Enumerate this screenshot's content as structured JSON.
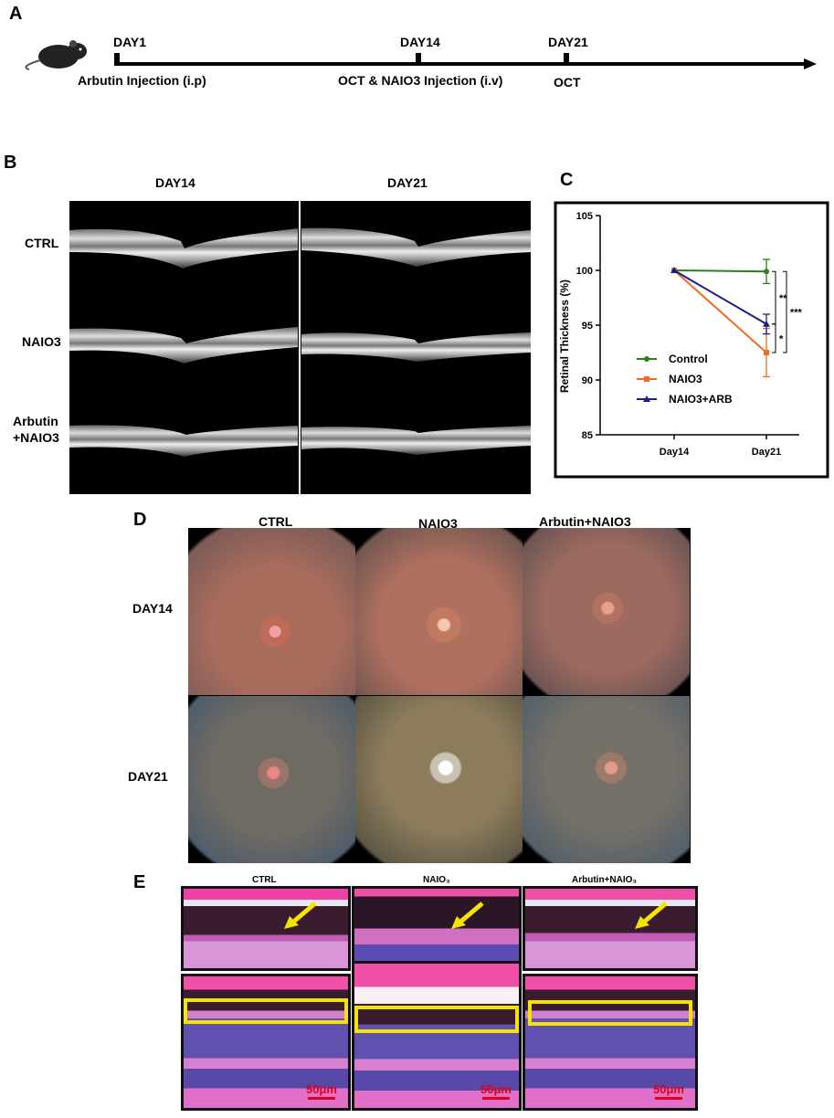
{
  "panels": {
    "a": "A",
    "b": "B",
    "c": "C",
    "d": "D",
    "e": "E"
  },
  "timeline": {
    "events": [
      {
        "day": "DAY1",
        "action": "Arbutin Injection (i.p)"
      },
      {
        "day": "DAY14",
        "action": "OCT & NAIO3 Injection (i.v)"
      },
      {
        "day": "DAY21",
        "action": "OCT"
      }
    ]
  },
  "oct": {
    "columns": [
      "DAY14",
      "DAY21"
    ],
    "rows": [
      "CTRL",
      "NAIO3",
      "Arbutin\n+NAIO3"
    ]
  },
  "fundus": {
    "columns": [
      "CTRL",
      "NAIO3",
      "Arbutin+NAIO3"
    ],
    "rows": [
      "DAY14",
      "DAY21"
    ]
  },
  "histology": {
    "columns": [
      "CTRL",
      "NAIO₃",
      "Arbutin+NAIO₃"
    ],
    "scale_label": "50μm"
  },
  "colors": {
    "control": "#2e7d1f",
    "naio3": "#f26b21",
    "naio3_arb": "#1c1c8c",
    "highlight_box": "#f4e400",
    "arrow": "#f4e400",
    "scale": "#e0001b"
  },
  "chart_data": {
    "type": "line",
    "x": [
      "Day14",
      "Day21"
    ],
    "ylabel": "Retinal Thickness (%)",
    "xlabel": "",
    "ylim": [
      85,
      105
    ],
    "yticks": [
      85,
      90,
      95,
      100,
      105
    ],
    "grid": false,
    "legend_position": "bottom-left",
    "series": [
      {
        "name": "Control",
        "values": [
          100,
          99.9
        ],
        "err": [
          0,
          1.1
        ],
        "color": "#2e7d1f",
        "marker": "circle"
      },
      {
        "name": "NAIO3",
        "values": [
          100,
          92.5
        ],
        "err": [
          0,
          2.2
        ],
        "color": "#f26b21",
        "marker": "square"
      },
      {
        "name": "NAIO3+ARB",
        "values": [
          100,
          95.1
        ],
        "err": [
          0,
          0.9
        ],
        "color": "#1c1c8c",
        "marker": "triangle"
      }
    ],
    "significance": [
      {
        "label": "**",
        "between": [
          "Control",
          "NAIO3+ARB"
        ]
      },
      {
        "label": "*",
        "between": [
          "NAIO3+ARB",
          "NAIO3"
        ]
      },
      {
        "label": "***",
        "between": [
          "Control",
          "NAIO3"
        ]
      }
    ]
  }
}
